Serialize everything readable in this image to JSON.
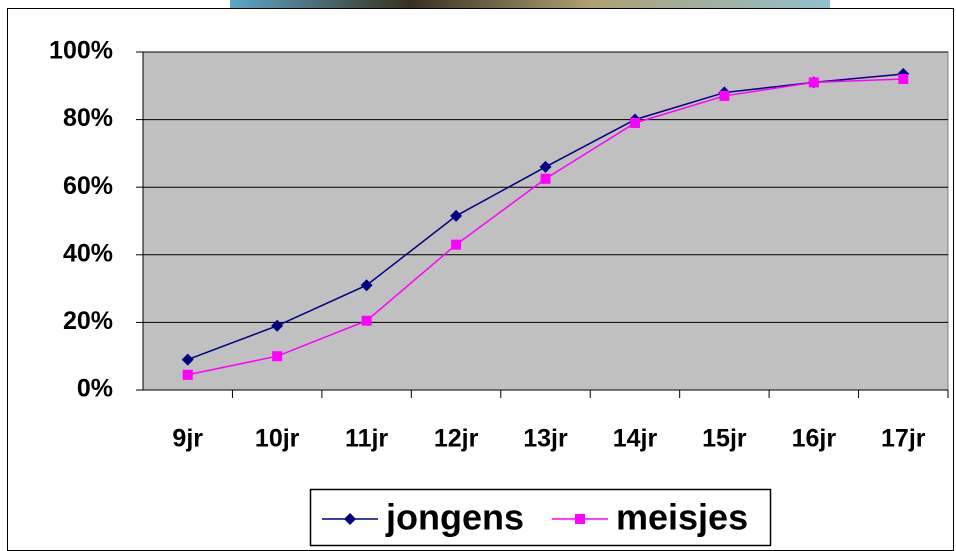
{
  "chart_data": {
    "type": "line",
    "categories": [
      "9jr",
      "10jr",
      "11jr",
      "12jr",
      "13jr",
      "14jr",
      "15jr",
      "16jr",
      "17jr"
    ],
    "series": [
      {
        "name": "jongens",
        "color": "#000080",
        "marker": "diamond",
        "values": [
          9,
          19,
          31,
          51.5,
          66,
          80,
          88,
          91,
          93.5
        ]
      },
      {
        "name": "meisjes",
        "color": "#ff00ff",
        "marker": "square",
        "values": [
          4.5,
          10,
          20.5,
          43,
          62.5,
          79,
          87,
          91,
          92
        ]
      }
    ],
    "ylim": [
      0,
      100
    ],
    "yticks": [
      {
        "value": 0,
        "label": "0%"
      },
      {
        "value": 20,
        "label": "20%"
      },
      {
        "value": 40,
        "label": "40%"
      },
      {
        "value": 60,
        "label": "60%"
      },
      {
        "value": 80,
        "label": "80%"
      },
      {
        "value": 100,
        "label": "100%"
      }
    ],
    "grid": true
  }
}
